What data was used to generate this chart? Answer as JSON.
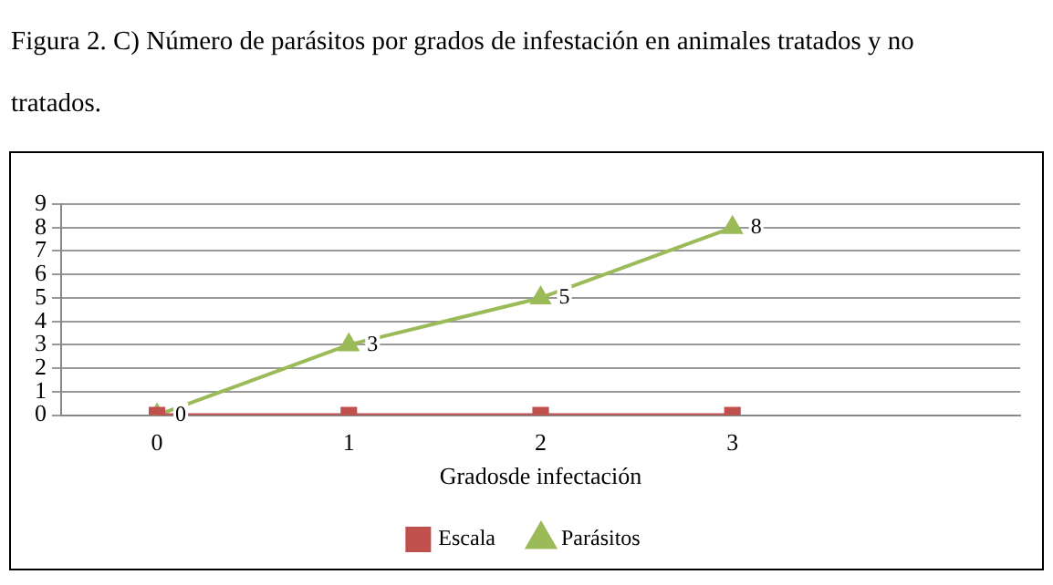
{
  "chart_data": {
    "type": "line",
    "title": "Figura 2. C) Número de parásitos por grados de infestación en animales tratados y no tratados.",
    "xlabel": "Gradosde infectación",
    "categories": [
      "0",
      "1",
      "2",
      "3",
      null
    ],
    "series": [
      {
        "name": "Escala",
        "color": "#c0504d",
        "marker": "square",
        "values": [
          0,
          0,
          0,
          0,
          null
        ]
      },
      {
        "name": "Parásitos",
        "color": "#9bbb59",
        "marker": "triangle",
        "values": [
          0,
          3,
          5,
          8,
          null
        ],
        "value_labels": [
          "0",
          "3",
          "5",
          "8",
          null
        ]
      }
    ],
    "ylim": [
      0,
      9
    ],
    "yticks": [
      0,
      1,
      2,
      3,
      4,
      5,
      6,
      7,
      8,
      9
    ],
    "grid": "y",
    "legend": "bottom"
  }
}
